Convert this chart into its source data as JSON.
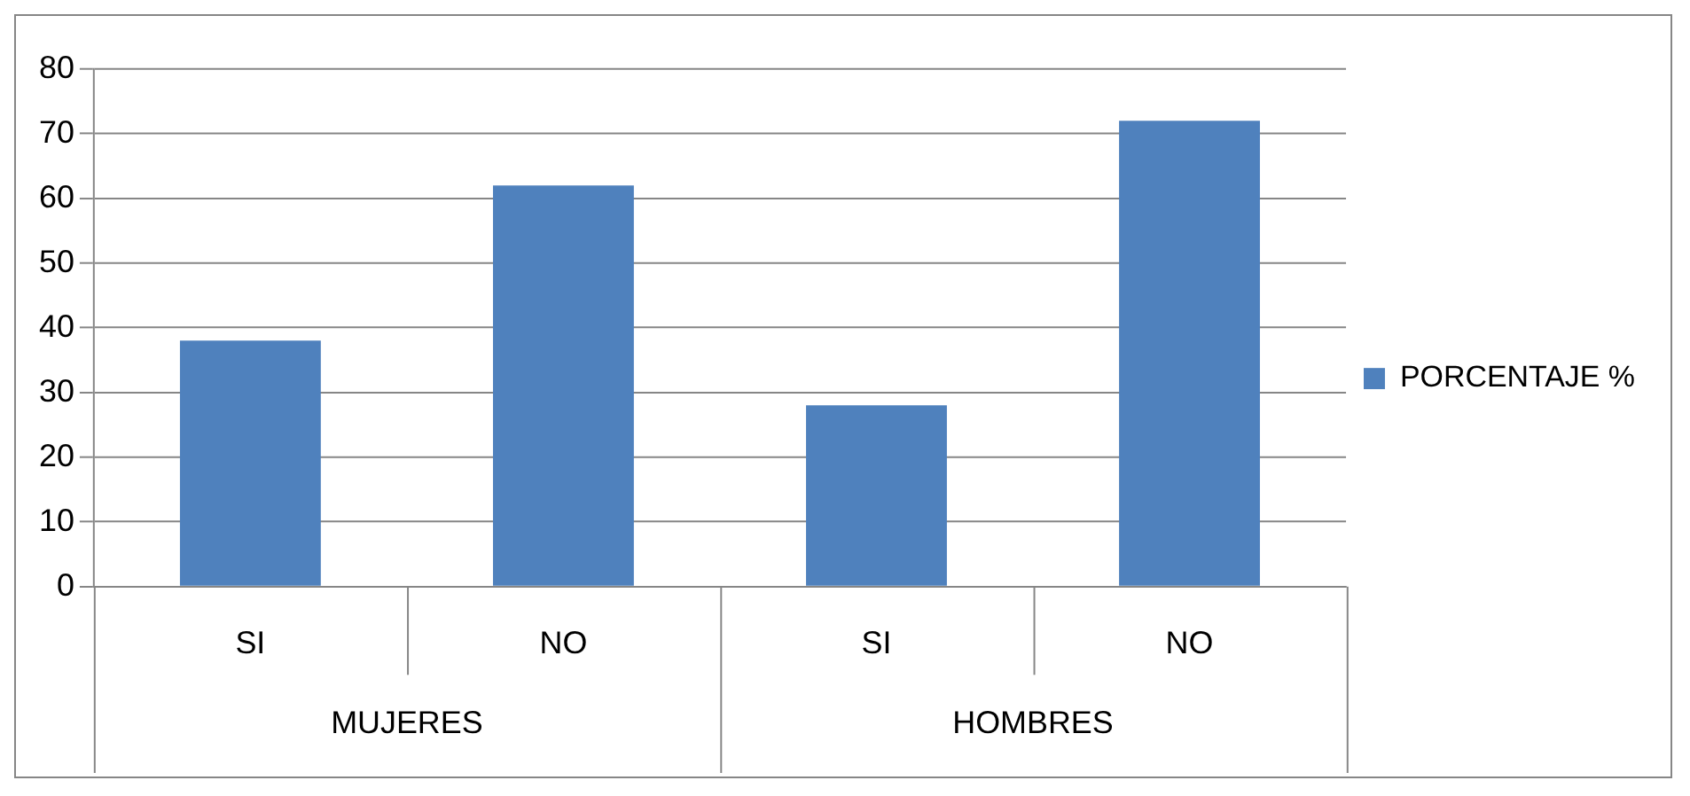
{
  "chart_data": {
    "type": "bar",
    "categories": [
      "SI",
      "NO",
      "SI",
      "NO"
    ],
    "series": [
      {
        "name": "PORCENTAJE %",
        "color": "#4f81bd",
        "values": [
          38,
          62,
          28,
          72
        ]
      }
    ],
    "ylim": [
      0,
      80
    ],
    "yticks": [
      0,
      10,
      20,
      30,
      40,
      50,
      60,
      70,
      80
    ],
    "grid": "y",
    "legend": "right",
    "annotations": [
      "MUJERES",
      "HOMBRES"
    ]
  }
}
